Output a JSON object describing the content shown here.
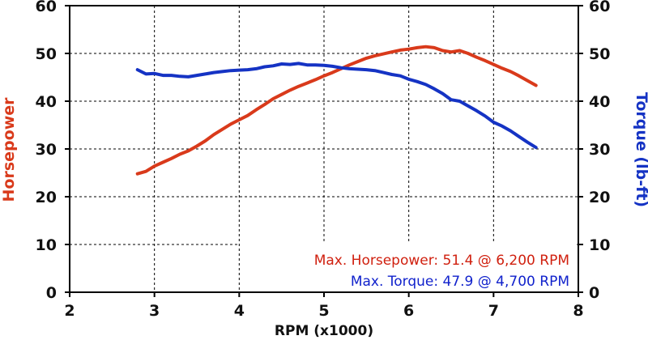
{
  "chart_data": {
    "type": "line",
    "xlabel": "RPM (x1000)",
    "ylabel_left": "Horsepower",
    "ylabel_right": "Torque (lb-ft)",
    "xlim": [
      2,
      8
    ],
    "ylim": [
      0,
      60
    ],
    "xticks": [
      "2",
      "3",
      "4",
      "5",
      "6",
      "7",
      "8"
    ],
    "yticks": [
      "0",
      "10",
      "20",
      "30",
      "40",
      "50",
      "60"
    ],
    "grid": true,
    "series": [
      {
        "name": "Horsepower",
        "color": "#d93a1b",
        "axis": "left",
        "x": [
          2.8,
          2.9,
          3.0,
          3.1,
          3.2,
          3.3,
          3.4,
          3.5,
          3.6,
          3.7,
          3.8,
          3.9,
          4.0,
          4.1,
          4.2,
          4.3,
          4.4,
          4.5,
          4.6,
          4.7,
          4.8,
          4.9,
          5.0,
          5.1,
          5.2,
          5.3,
          5.4,
          5.5,
          5.6,
          5.7,
          5.8,
          5.9,
          6.0,
          6.1,
          6.2,
          6.3,
          6.4,
          6.5,
          6.6,
          6.7,
          6.8,
          6.9,
          7.0,
          7.1,
          7.2,
          7.3,
          7.4,
          7.5
        ],
        "y": [
          24.8,
          25.3,
          26.4,
          27.2,
          28.0,
          28.9,
          29.6,
          30.6,
          31.7,
          33.0,
          34.1,
          35.2,
          36.1,
          37.0,
          38.2,
          39.3,
          40.5,
          41.4,
          42.3,
          43.1,
          43.8,
          44.5,
          45.3,
          46.0,
          46.8,
          47.6,
          48.3,
          49.0,
          49.5,
          49.9,
          50.3,
          50.7,
          50.9,
          51.2,
          51.4,
          51.2,
          50.6,
          50.3,
          50.6,
          50.0,
          49.2,
          48.5,
          47.7,
          46.9,
          46.2,
          45.3,
          44.3,
          43.3
        ]
      },
      {
        "name": "Torque",
        "color": "#1533c4",
        "axis": "right",
        "x": [
          2.8,
          2.9,
          3.0,
          3.1,
          3.2,
          3.3,
          3.4,
          3.5,
          3.6,
          3.7,
          3.8,
          3.9,
          4.0,
          4.1,
          4.2,
          4.3,
          4.4,
          4.5,
          4.6,
          4.7,
          4.8,
          4.9,
          5.0,
          5.1,
          5.2,
          5.3,
          5.4,
          5.5,
          5.6,
          5.7,
          5.8,
          5.9,
          6.0,
          6.1,
          6.2,
          6.3,
          6.4,
          6.5,
          6.6,
          6.7,
          6.8,
          6.9,
          7.0,
          7.1,
          7.2,
          7.3,
          7.4,
          7.5
        ],
        "y": [
          46.6,
          45.7,
          45.8,
          45.4,
          45.4,
          45.2,
          45.1,
          45.4,
          45.7,
          46.0,
          46.2,
          46.4,
          46.5,
          46.6,
          46.8,
          47.2,
          47.4,
          47.8,
          47.7,
          47.9,
          47.6,
          47.6,
          47.5,
          47.3,
          47.0,
          46.8,
          46.7,
          46.6,
          46.4,
          46.0,
          45.6,
          45.3,
          44.6,
          44.1,
          43.5,
          42.6,
          41.6,
          40.3,
          40.0,
          39.0,
          38.0,
          36.9,
          35.6,
          34.8,
          33.8,
          32.6,
          31.4,
          30.3
        ]
      }
    ],
    "annotations": [
      {
        "text": "Max. Horsepower: 51.4 @ 6,200 RPM",
        "color": "#d0200f"
      },
      {
        "text": "Max. Torque: 47.9 @ 4,700 RPM",
        "color": "#1122cc"
      }
    ]
  }
}
